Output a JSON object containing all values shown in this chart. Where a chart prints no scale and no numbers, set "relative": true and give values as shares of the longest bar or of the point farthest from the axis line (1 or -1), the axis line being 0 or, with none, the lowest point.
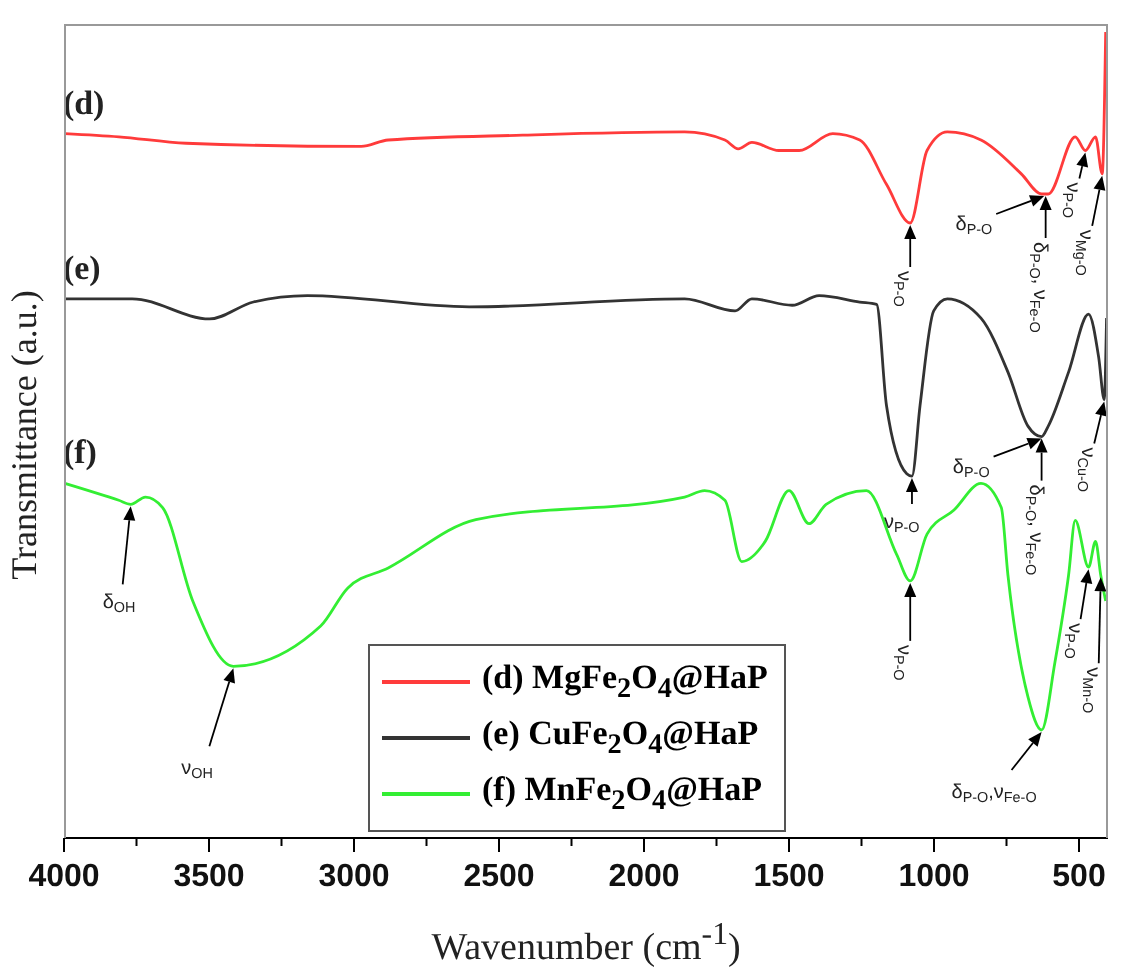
{
  "chart_data": {
    "type": "line",
    "relative": true,
    "xlabel": "Wavenumber (cm$^{-1}$)",
    "ylabel": "Transmittance (a.u.)",
    "xlim": [
      4000,
      400
    ],
    "xticks": [
      4000,
      {
        "value": 3750,
        "label": null
      },
      3500,
      {
        "value": 3250,
        "label": null
      },
      3000,
      {
        "value": 2750,
        "label": null
      },
      2500,
      {
        "value": 2250,
        "label": null
      },
      2000,
      {
        "value": 1750,
        "label": null
      },
      1500,
      {
        "value": 1250,
        "label": null
      },
      1000,
      {
        "value": 750,
        "label": null
      },
      500
    ],
    "legend": "bottom",
    "grid": false,
    "marker": "none",
    "line_style": "solid",
    "series": [
      {
        "name": "(d) MgFe$_{2}$O$_{4}$@HaP",
        "color": "#ff3b3b",
        "x": [
          3997,
          3811,
          3579,
          2975,
          2882,
          2418,
          1860,
          1721,
          1675,
          1628,
          1535,
          1465,
          1349,
          1256,
          1164,
          1082,
          1024,
          954,
          838,
          699,
          629,
          606,
          513,
          478,
          443,
          420,
          408
        ],
        "values": [
          0.874,
          0.87,
          0.862,
          0.858,
          0.866,
          0.872,
          0.876,
          0.866,
          0.855,
          0.863,
          0.853,
          0.853,
          0.874,
          0.866,
          0.811,
          0.763,
          0.853,
          0.876,
          0.866,
          0.824,
          0.799,
          0.799,
          0.87,
          0.853,
          0.87,
          0.824,
          1.0
        ]
      },
      {
        "name": "(e) CuFe$_{2}$O$_{4}$@HaP",
        "color": "#333333",
        "x": [
          3997,
          3765,
          3498,
          3347,
          3161,
          2603,
          1860,
          1686,
          1628,
          1489,
          1396,
          1256,
          1198,
          1164,
          1094,
          1076,
          1048,
          1001,
          954,
          838,
          745,
          676,
          629,
          606,
          536,
          467,
          432,
          413,
          405
        ],
        "values": [
          0.669,
          0.669,
          0.644,
          0.665,
          0.673,
          0.659,
          0.669,
          0.654,
          0.669,
          0.661,
          0.673,
          0.665,
          0.662,
          0.537,
          0.452,
          0.449,
          0.537,
          0.654,
          0.669,
          0.645,
          0.578,
          0.511,
          0.498,
          0.511,
          0.578,
          0.65,
          0.596,
          0.544,
          0.645
        ]
      },
      {
        "name": "(f) MnFe$_{2}$O$_{4}$@HaP",
        "color": "#33ee33",
        "x": [
          3997,
          3811,
          3770,
          3719,
          3660,
          3556,
          3416,
          3115,
          3022,
          2882,
          2580,
          1860,
          1791,
          1721,
          1663,
          1582,
          1500,
          1431,
          1372,
          1233,
          1129,
          1082,
          1024,
          931,
          838,
          768,
          745,
          676,
          629,
          583,
          536,
          513,
          467,
          443,
          425,
          408
        ],
        "values": [
          0.44,
          0.419,
          0.414,
          0.423,
          0.41,
          0.294,
          0.213,
          0.263,
          0.31,
          0.335,
          0.395,
          0.423,
          0.431,
          0.419,
          0.343,
          0.368,
          0.431,
          0.39,
          0.414,
          0.431,
          0.352,
          0.319,
          0.377,
          0.407,
          0.44,
          0.41,
          0.326,
          0.175,
          0.134,
          0.218,
          0.326,
          0.394,
          0.336,
          0.368,
          0.326,
          0.294
        ]
      }
    ],
    "annotations": [
      {
        "text": "ν$_{P-O}$",
        "x": 1082,
        "y": 0.763
      },
      {
        "text": "δ$_{P-O}$",
        "x": 620,
        "y": 0.799
      },
      {
        "text": "δ$_{P-O}$, ν$_{Fe-O}$",
        "x": 615,
        "y": 0.799
      },
      {
        "text": "ν$_{P-O}$",
        "x": 478,
        "y": 0.853
      },
      {
        "text": "ν$_{Mg-O}$",
        "x": 420,
        "y": 0.824
      },
      {
        "text": "ν$_{P-O}$",
        "x": 1076,
        "y": 0.449
      },
      {
        "text": "δ$_{P-O}$",
        "x": 629,
        "y": 0.498
      },
      {
        "text": "δ$_{P-O}$, ν$_{Fe-O}$",
        "x": 629,
        "y": 0.498
      },
      {
        "text": "ν$_{Cu-O}$",
        "x": 413,
        "y": 0.544
      },
      {
        "text": "δ$_{OH}$",
        "x": 3770,
        "y": 0.414
      },
      {
        "text": "ν$_{OH}$",
        "x": 3416,
        "y": 0.213
      },
      {
        "text": "ν$_{P-O}$",
        "x": 1082,
        "y": 0.319
      },
      {
        "text": "δ$_{P-O}$,ν$_{Fe-O}$",
        "x": 629,
        "y": 0.134
      },
      {
        "text": "ν$_{P-O}$",
        "x": 467,
        "y": 0.336
      },
      {
        "text": "ν$_{Mn-O}$",
        "x": 425,
        "y": 0.326
      },
      {
        "text": "(d)",
        "x": 3990,
        "y": 0.874
      },
      {
        "text": "(e)",
        "x": 3990,
        "y": 0.669
      },
      {
        "text": "(f)",
        "x": 3990,
        "y": 0.44
      }
    ]
  }
}
